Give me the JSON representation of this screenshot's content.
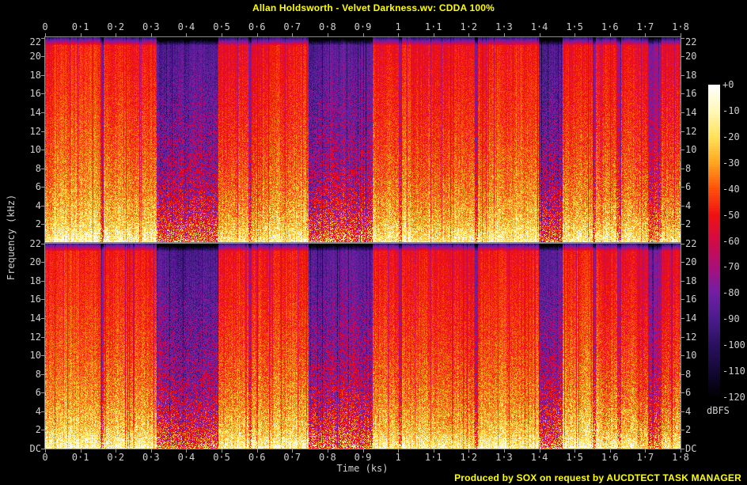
{
  "footer": {
    "credit": "Produced by SOX on request by AUCDTECT TASK MANAGER"
  },
  "colors": {
    "background": "#000000",
    "title_text": "#FFFF00",
    "credit_text": "#FFFF00",
    "axis_text": "#CFCFCF",
    "frame": "#8A8A8A",
    "tick": "#9A9A9A"
  },
  "chart_data": {
    "type": "heatmap",
    "subtype": "stereo-spectrogram",
    "title": "Allan Holdsworth - Velvet Darkness.wv: CDDA 100%",
    "xlabel": "Time (ks)",
    "ylabel": "Frequency (kHz)",
    "channels": 2,
    "x_range_ks": [
      0,
      1.8
    ],
    "y_range_khz_per_channel": [
      0,
      22.05
    ],
    "x_tick_labels": [
      "0",
      "0·1",
      "0·2",
      "0·3",
      "0·4",
      "0·5",
      "0·6",
      "0·7",
      "0·8",
      "0·9",
      "1",
      "1·1",
      "1·2",
      "1·3",
      "1·4",
      "1·5",
      "1·6",
      "1·7",
      "1·8"
    ],
    "y_tick_labels_top_panel": [
      "22",
      "20",
      "18",
      "16",
      "14",
      "12",
      "10",
      "8",
      "6",
      "4",
      "2"
    ],
    "y_tick_labels_bottom_panel": [
      "22",
      "20",
      "18",
      "16",
      "14",
      "12",
      "10",
      "8",
      "6",
      "4",
      "2",
      "DC"
    ],
    "colorbar": {
      "label": "dBFS",
      "max_db": 0,
      "min_db": -120,
      "tick_labels": [
        "+0",
        "-10",
        "-20",
        "-30",
        "-40",
        "-50",
        "-60",
        "-70",
        "-80",
        "-90",
        "-100",
        "-110",
        "-120"
      ]
    },
    "palette_db_stops": [
      [
        0,
        "#FFFFFF"
      ],
      [
        -10,
        "#FFF8B8"
      ],
      [
        -20,
        "#FFE25A"
      ],
      [
        -30,
        "#FFA51E"
      ],
      [
        -40,
        "#FF500A"
      ],
      [
        -50,
        "#F01212"
      ],
      [
        -60,
        "#D20A46"
      ],
      [
        -70,
        "#AA0F78"
      ],
      [
        -80,
        "#701FA5"
      ],
      [
        -90,
        "#4A1B8C"
      ],
      [
        -100,
        "#2A1060"
      ],
      [
        -110,
        "#140836"
      ],
      [
        -120,
        "#000000"
      ]
    ],
    "loudness_segments_ks": [
      {
        "t0": 0.0,
        "t1": 0.155,
        "level": 1.0
      },
      {
        "t0": 0.155,
        "t1": 0.165,
        "level": 0.55
      },
      {
        "t0": 0.165,
        "t1": 0.315,
        "level": 0.97
      },
      {
        "t0": 0.315,
        "t1": 0.4,
        "level": 0.3
      },
      {
        "t0": 0.4,
        "t1": 0.489,
        "level": 0.36
      },
      {
        "t0": 0.489,
        "t1": 0.575,
        "level": 1.0
      },
      {
        "t0": 0.575,
        "t1": 0.585,
        "level": 0.6
      },
      {
        "t0": 0.585,
        "t1": 0.745,
        "level": 0.96
      },
      {
        "t0": 0.745,
        "t1": 0.8,
        "level": 0.28
      },
      {
        "t0": 0.8,
        "t1": 0.926,
        "level": 0.34
      },
      {
        "t0": 0.926,
        "t1": 1.0,
        "level": 0.97
      },
      {
        "t0": 1.0,
        "t1": 1.01,
        "level": 0.6
      },
      {
        "t0": 1.01,
        "t1": 1.215,
        "level": 1.0
      },
      {
        "t0": 1.215,
        "t1": 1.225,
        "level": 0.5
      },
      {
        "t0": 1.225,
        "t1": 1.397,
        "level": 1.0
      },
      {
        "t0": 1.397,
        "t1": 1.464,
        "level": 0.3
      },
      {
        "t0": 1.464,
        "t1": 1.549,
        "level": 0.95
      },
      {
        "t0": 1.549,
        "t1": 1.558,
        "level": 0.45
      },
      {
        "t0": 1.558,
        "t1": 1.62,
        "level": 0.92
      },
      {
        "t0": 1.62,
        "t1": 1.63,
        "level": 0.6
      },
      {
        "t0": 1.63,
        "t1": 1.706,
        "level": 0.95
      },
      {
        "t0": 1.706,
        "t1": 1.744,
        "level": 0.55
      },
      {
        "t0": 1.744,
        "t1": 1.8,
        "level": 0.92
      }
    ]
  }
}
